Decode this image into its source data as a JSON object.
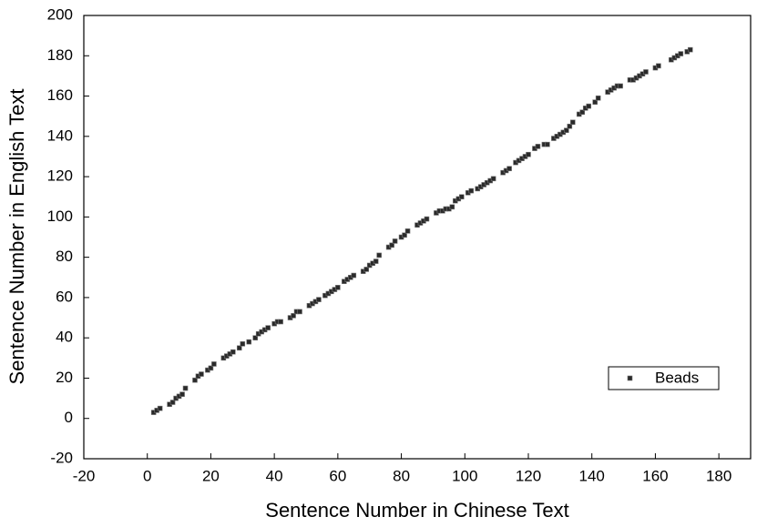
{
  "chart_data": {
    "type": "scatter",
    "xlabel": "Sentence Number in Chinese Text",
    "ylabel": "Sentence Number in English Text",
    "xlim": [
      -20,
      190
    ],
    "ylim": [
      -20,
      200
    ],
    "xticks": [
      -20,
      0,
      20,
      40,
      60,
      80,
      100,
      120,
      140,
      160,
      180
    ],
    "yticks": [
      -20,
      0,
      20,
      40,
      60,
      80,
      100,
      120,
      140,
      160,
      180,
      200
    ],
    "legend": "lower right",
    "series": [
      {
        "name": "Beads",
        "color": "#2a2a2a",
        "x": [
          2,
          3,
          4,
          7,
          8,
          9,
          10,
          11,
          12,
          15,
          16,
          17,
          19,
          20,
          21,
          24,
          25,
          26,
          27,
          29,
          30,
          32,
          34,
          35,
          36,
          37,
          38,
          40,
          41,
          42,
          45,
          46,
          47,
          48,
          51,
          52,
          53,
          54,
          56,
          57,
          58,
          59,
          60,
          62,
          63,
          64,
          65,
          68,
          69,
          70,
          71,
          72,
          73,
          76,
          77,
          78,
          80,
          81,
          82,
          85,
          86,
          87,
          88,
          91,
          92,
          93,
          94,
          95,
          96,
          97,
          98,
          99,
          101,
          102,
          104,
          105,
          106,
          107,
          108,
          109,
          112,
          113,
          114,
          116,
          117,
          118,
          119,
          120,
          122,
          123,
          125,
          126,
          128,
          129,
          130,
          131,
          132,
          133,
          134,
          136,
          137,
          138,
          139,
          141,
          142,
          145,
          146,
          147,
          148,
          149,
          152,
          153,
          154,
          155,
          156,
          157,
          160,
          161,
          165,
          166,
          167,
          168,
          170,
          171
        ],
        "values": [
          3,
          4,
          5,
          7,
          8,
          10,
          11,
          12,
          15,
          19,
          21,
          22,
          24,
          25,
          27,
          30,
          31,
          32,
          33,
          35,
          37,
          38,
          40,
          42,
          43,
          44,
          45,
          47,
          48,
          48,
          50,
          51,
          53,
          53,
          56,
          57,
          58,
          59,
          61,
          62,
          63,
          64,
          65,
          68,
          69,
          70,
          71,
          73,
          74,
          76,
          77,
          78,
          81,
          85,
          86,
          88,
          90,
          91,
          93,
          96,
          97,
          98,
          99,
          102,
          103,
          103,
          104,
          104,
          105,
          108,
          109,
          110,
          112,
          113,
          114,
          115,
          116,
          117,
          118,
          119,
          122,
          123,
          124,
          127,
          128,
          129,
          130,
          131,
          134,
          135,
          136,
          136,
          139,
          140,
          141,
          142,
          143,
          145,
          147,
          151,
          152,
          154,
          155,
          157,
          159,
          162,
          163,
          164,
          165,
          165,
          168,
          168,
          169,
          170,
          171,
          172,
          174,
          175,
          178,
          179,
          180,
          181,
          182,
          183
        ]
      }
    ]
  }
}
